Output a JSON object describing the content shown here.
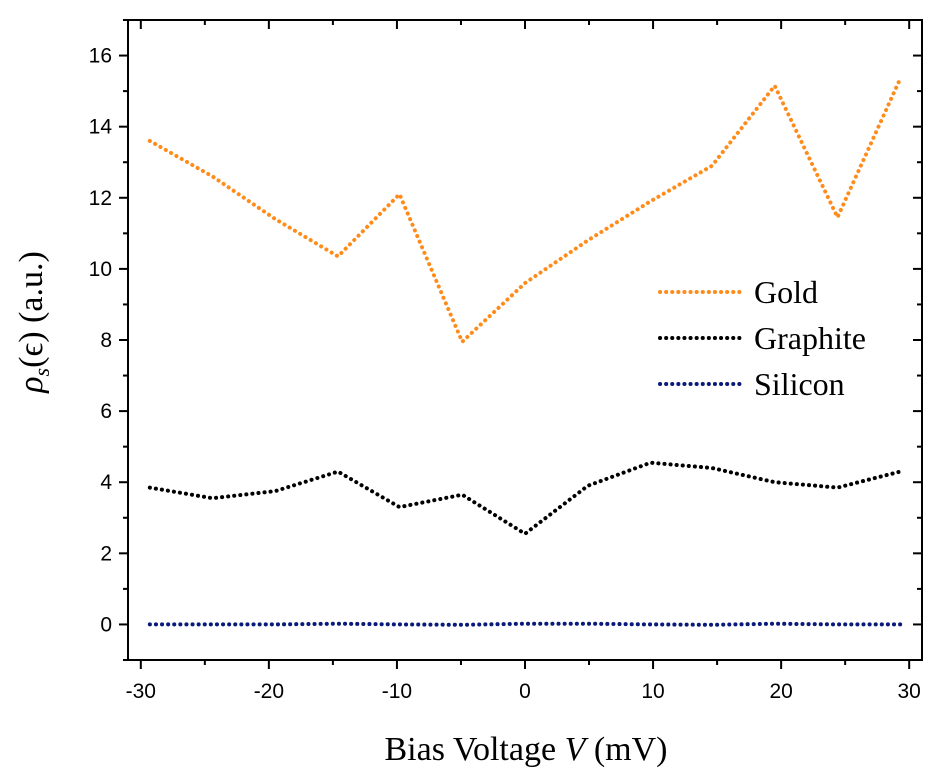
{
  "chart_data": {
    "type": "line",
    "title": "",
    "xlabel": "Bias Voltage V (mV)",
    "xlabel_parts": {
      "prefix": "Bias Voltage ",
      "var": "V",
      "suffix": " (mV)"
    },
    "ylabel": "ρs(ϵ) (a.u.)",
    "ylabel_parts": {
      "rho": "ρ",
      "sub": "s",
      "arg": "(ϵ) (a.u.)"
    },
    "xlim": [
      -31,
      31
    ],
    "ylim": [
      -1,
      17
    ],
    "x_ticks": [
      -30,
      -20,
      -10,
      0,
      10,
      20,
      30
    ],
    "x_tick_labels": [
      "-30",
      "-20",
      "-10",
      "0",
      "10",
      "20",
      "30"
    ],
    "y_ticks": [
      0,
      2,
      4,
      6,
      8,
      10,
      12,
      14,
      16
    ],
    "y_tick_labels": [
      "0",
      "2",
      "4",
      "6",
      "8",
      "10",
      "12",
      "14",
      "16"
    ],
    "grid": false,
    "legend_position": "right",
    "series": [
      {
        "name": "Gold",
        "color": "#ff8c1a",
        "x": [
          -29.3,
          -24.4,
          -19.5,
          -14.6,
          -9.8,
          -4.9,
          0,
          4.9,
          9.8,
          14.6,
          19.5,
          24.4,
          29.3
        ],
        "y": [
          13.6,
          12.6,
          11.4,
          10.35,
          12.1,
          7.95,
          9.6,
          10.8,
          11.9,
          12.9,
          15.15,
          11.45,
          15.35
        ]
      },
      {
        "name": "Graphite",
        "color": "#000000",
        "x": [
          -29.3,
          -24.4,
          -19.5,
          -14.6,
          -9.8,
          -4.9,
          0,
          4.9,
          9.8,
          14.6,
          19.5,
          24.4,
          29.3
        ],
        "y": [
          3.85,
          3.55,
          3.75,
          4.3,
          3.3,
          3.65,
          2.55,
          3.9,
          4.55,
          4.4,
          4.0,
          3.85,
          4.3
        ]
      },
      {
        "name": "Silicon",
        "color": "#0a1a7a",
        "x": [
          -29.3,
          -24.4,
          -19.5,
          -14.6,
          -9.8,
          -4.9,
          0,
          4.9,
          9.8,
          14.6,
          19.5,
          24.4,
          29.3
        ],
        "y": [
          0.0,
          0.0,
          0.0,
          0.02,
          0.0,
          -0.01,
          0.02,
          0.02,
          0.0,
          -0.01,
          0.02,
          0.0,
          0.0
        ]
      }
    ]
  }
}
